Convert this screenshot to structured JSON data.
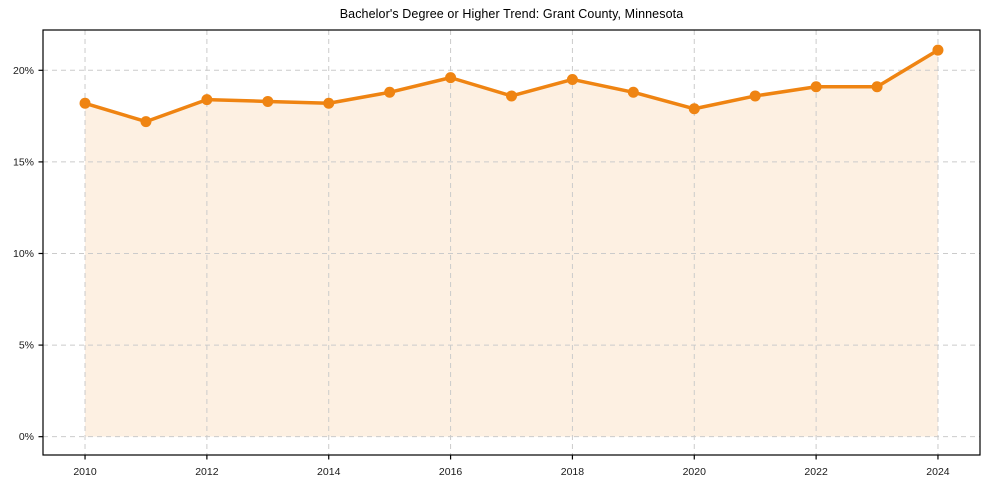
{
  "chart_data": {
    "type": "area",
    "title": "Bachelor's Degree or Higher Trend: Grant County, Minnesota",
    "x": [
      2010,
      2011,
      2012,
      2013,
      2014,
      2015,
      2016,
      2017,
      2018,
      2019,
      2020,
      2021,
      2022,
      2023,
      2024
    ],
    "series": [
      {
        "name": "Bachelor's degree or higher (%)",
        "values": [
          18.2,
          17.2,
          18.4,
          18.3,
          18.2,
          18.8,
          19.6,
          18.6,
          19.5,
          18.8,
          17.9,
          18.6,
          19.1,
          19.1,
          21.1
        ]
      }
    ],
    "xlabel": "",
    "ylabel": "",
    "x_ticks": [
      2010,
      2012,
      2014,
      2016,
      2018,
      2020,
      2022,
      2024
    ],
    "x_tick_labels": [
      "2010",
      "2012",
      "2014",
      "2016",
      "2018",
      "2020",
      "2022",
      "2024"
    ],
    "y_ticks": [
      0,
      5,
      10,
      15,
      20
    ],
    "y_tick_labels": [
      "0%",
      "5%",
      "10%",
      "15%",
      "20%"
    ],
    "xlim": [
      2009.31,
      2024.69
    ],
    "ylim": [
      -1.0,
      22.2
    ],
    "grid": true,
    "legend_position": "none",
    "colors": {
      "line": "#ef8412",
      "marker": "#ef8412",
      "fill": "#ef8412",
      "fill_opacity": 0.12,
      "grid": "#cbcbcb",
      "axis": "#000000",
      "text": "#1a1a1a",
      "background": "#ffffff"
    }
  }
}
